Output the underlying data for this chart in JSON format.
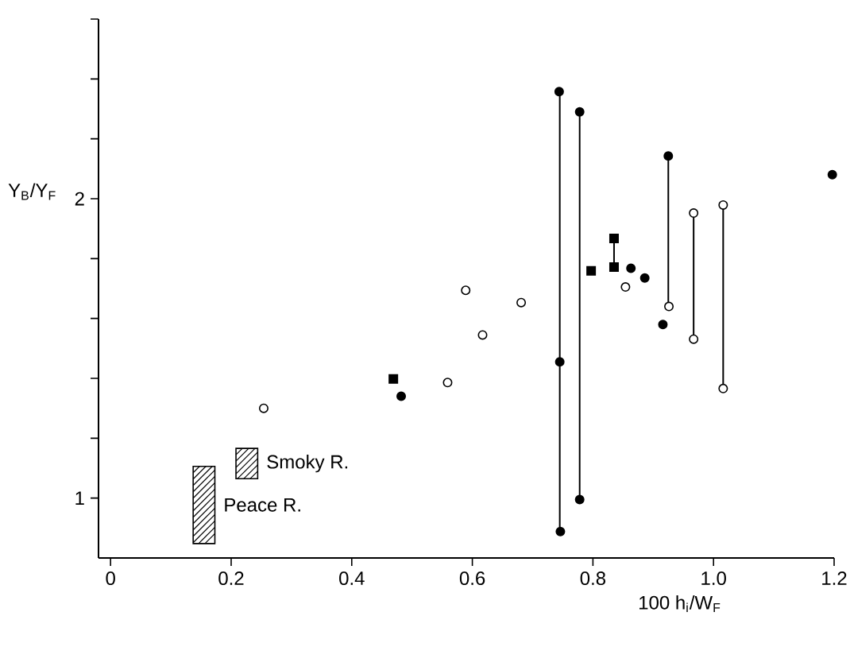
{
  "chart_data": {
    "type": "scatter",
    "legend": "bottom left",
    "xlabel": "100 h$_{i}$/W$_{F}$",
    "ylabel": "Y$_{B}$/Y$_{F}$",
    "xlim": [
      -0.02,
      1.2
    ],
    "ylim": [
      0.8,
      2.6
    ],
    "xticks": [
      0,
      0.2,
      0.4,
      0.6,
      0.8,
      {
        "value": 1.0,
        "label": "1.0"
      },
      1.2
    ],
    "yticks": [
      1,
      {
        "value": 1.2,
        "label": null
      },
      {
        "value": 1.4,
        "label": null
      },
      {
        "value": 1.6,
        "label": null
      },
      {
        "value": 1.8,
        "label": null
      },
      2,
      {
        "value": 2.2,
        "label": null
      },
      {
        "value": 2.4,
        "label": null
      },
      {
        "value": 2.6,
        "label": null
      }
    ],
    "series": [
      {
        "type": "line",
        "color": "#000000",
        "x": [
          0.745,
          0.745
        ],
        "values": [
          0.888,
          2.358
        ]
      },
      {
        "type": "line",
        "color": "#000000",
        "x": [
          0.778,
          0.778
        ],
        "values": [
          0.995,
          2.29
        ]
      },
      {
        "type": "line",
        "color": "#000000",
        "x": [
          0.835,
          0.835
        ],
        "values": [
          1.772,
          1.867
        ]
      },
      {
        "type": "line",
        "color": "#000000",
        "x": [
          0.925,
          0.925
        ],
        "values": [
          1.64,
          2.143
        ]
      },
      {
        "type": "line",
        "color": "#000000",
        "x": [
          0.967,
          0.967
        ],
        "values": [
          1.531,
          1.952
        ]
      },
      {
        "type": "line",
        "color": "#000000",
        "x": [
          1.016,
          1.016
        ],
        "values": [
          1.366,
          1.979
        ]
      },
      {
        "type": "scatter",
        "marker": "circle",
        "color": "#000000",
        "x": [
          0.744,
          0.745,
          0.746,
          0.778,
          0.778,
          0.925,
          1.197,
          0.863,
          0.886,
          0.916,
          0.482
        ],
        "values": [
          2.358,
          1.455,
          0.888,
          2.29,
          0.995,
          2.143,
          2.08,
          1.768,
          1.735,
          1.58,
          1.34
        ]
      },
      {
        "type": "scatter",
        "marker": "circle",
        "color": "#ffffff",
        "x": [
          0.254,
          0.559,
          0.589,
          0.617,
          0.681,
          0.854,
          0.926,
          0.967,
          0.967,
          1.016,
          1.016
        ],
        "values": [
          1.3,
          1.386,
          1.694,
          1.545,
          1.653,
          1.705,
          1.64,
          1.952,
          1.531,
          1.979,
          1.366
        ]
      },
      {
        "type": "scatter",
        "marker": "square",
        "color": "#000000",
        "x": [
          0.469,
          0.797,
          0.835,
          0.835
        ],
        "values": [
          1.398,
          1.759,
          1.867,
          1.772
        ]
      },
      {
        "type": "bar",
        "name": "Smoky R.",
        "color": "#000000",
        "x": [
          0.226
        ],
        "base": [
          1.065
        ],
        "values": [
          0.101
        ]
      },
      {
        "type": "bar",
        "name": "Peace R.",
        "color": "#000000",
        "x": [
          0.155
        ],
        "base": [
          0.848
        ],
        "values": [
          0.258
        ]
      }
    ]
  }
}
